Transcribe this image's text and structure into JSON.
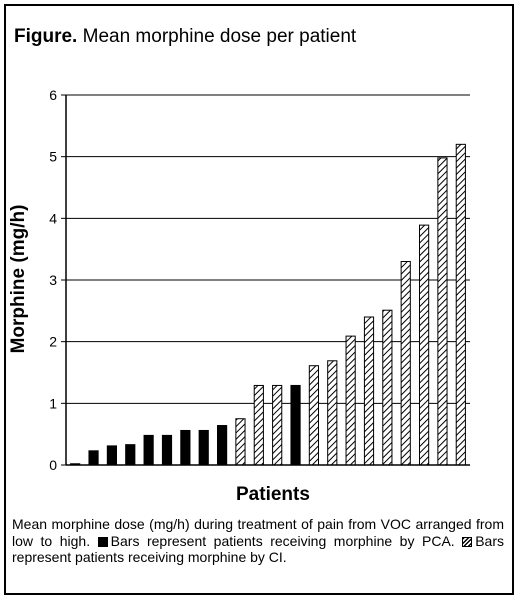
{
  "title_prefix": "Figure.",
  "title_rest": " Mean morphine dose per patient",
  "caption": {
    "part1": "Mean morphine dose (mg/h) during treatment of pain from VOC arranged from low to high. ",
    "part2": "Bars represent patients receiving morphine by PCA. ",
    "part3": "Bars represent patients receiving morphine by CI."
  },
  "chart_data": {
    "type": "bar",
    "title": "Mean morphine dose per patient",
    "xlabel": "Patients",
    "ylabel": "Morphine (mg/h)",
    "ylim": [
      0,
      6
    ],
    "yticks": [
      0,
      1,
      2,
      3,
      4,
      5,
      6
    ],
    "grid": "horizontal",
    "colors": {
      "PCA": "#000000",
      "CI": "hatched"
    },
    "bars": [
      {
        "value": 0.02,
        "group": "PCA"
      },
      {
        "value": 0.23,
        "group": "PCA"
      },
      {
        "value": 0.31,
        "group": "PCA"
      },
      {
        "value": 0.33,
        "group": "PCA"
      },
      {
        "value": 0.48,
        "group": "PCA"
      },
      {
        "value": 0.48,
        "group": "PCA"
      },
      {
        "value": 0.56,
        "group": "PCA"
      },
      {
        "value": 0.56,
        "group": "PCA"
      },
      {
        "value": 0.64,
        "group": "PCA"
      },
      {
        "value": 0.75,
        "group": "CI"
      },
      {
        "value": 1.29,
        "group": "CI"
      },
      {
        "value": 1.29,
        "group": "CI"
      },
      {
        "value": 1.29,
        "group": "PCA"
      },
      {
        "value": 1.61,
        "group": "CI"
      },
      {
        "value": 1.69,
        "group": "CI"
      },
      {
        "value": 2.09,
        "group": "CI"
      },
      {
        "value": 2.4,
        "group": "CI"
      },
      {
        "value": 2.51,
        "group": "CI"
      },
      {
        "value": 3.3,
        "group": "CI"
      },
      {
        "value": 3.89,
        "group": "CI"
      },
      {
        "value": 4.98,
        "group": "CI"
      },
      {
        "value": 5.2,
        "group": "CI"
      }
    ]
  }
}
